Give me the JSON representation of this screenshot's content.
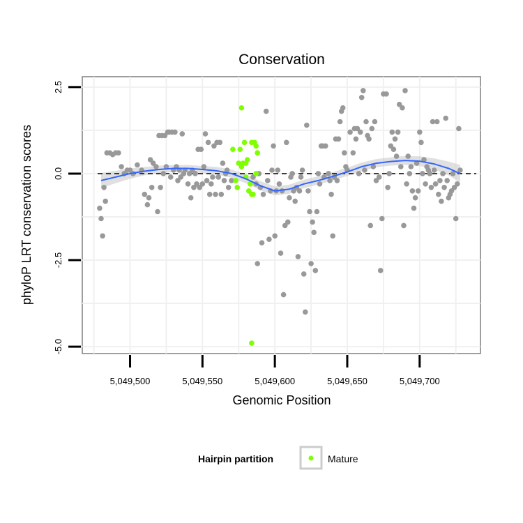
{
  "chart_data": {
    "type": "scatter",
    "title": "Conservation",
    "xlabel": "Genomic Position",
    "ylabel": "phyloP LRT conservation scores",
    "xlim": [
      5049467,
      5049742
    ],
    "ylim": [
      -5.2,
      2.8
    ],
    "x_ticks": [
      5049500,
      5049550,
      5049600,
      5049650,
      5049700
    ],
    "x_tick_labels": [
      "5,049,500",
      "5,049,550",
      "5,049,600",
      "5,049,650",
      "5,049,700"
    ],
    "y_ticks": [
      2.5,
      0.0,
      -2.5,
      -5.0
    ],
    "y_tick_labels": [
      "2.5",
      "0.0",
      "-2.5",
      "-5.0"
    ],
    "grid": true,
    "reference_line": {
      "y": 0,
      "style": "dashed"
    },
    "colors": {
      "other": "#999999",
      "mature": "#7fff00",
      "smooth": "#3366ff",
      "band": "#cccccc",
      "panel_border": "#7f7f7f",
      "grid": "#f0f0f0"
    },
    "legend": {
      "title": "Hairpin partition",
      "position": "bottom",
      "entries": [
        {
          "label": "Mature",
          "color": "#7fff00"
        }
      ]
    },
    "series": [
      {
        "group": "other",
        "points": [
          [
            5049479,
            -1.0
          ],
          [
            5049480,
            -1.3
          ],
          [
            5049481,
            -1.8
          ],
          [
            5049482,
            -0.4
          ],
          [
            5049483,
            -0.8
          ],
          [
            5049484,
            0.6
          ],
          [
            5049486,
            0.6
          ],
          [
            5049488,
            0.55
          ],
          [
            5049490,
            0.6
          ],
          [
            5049492,
            0.6
          ],
          [
            5049494,
            0.2
          ],
          [
            5049496,
            0.0
          ],
          [
            5049498,
            0.1
          ],
          [
            5049500,
            0.1
          ],
          [
            5049502,
            0.0
          ],
          [
            5049505,
            0.25
          ],
          [
            5049508,
            0.1
          ],
          [
            5049510,
            -0.6
          ],
          [
            5049512,
            -0.9
          ],
          [
            5049513,
            -0.7
          ],
          [
            5049514,
            0.4
          ],
          [
            5049515,
            -0.4
          ],
          [
            5049516,
            0.3
          ],
          [
            5049518,
            0.2
          ],
          [
            5049519,
            -1.1
          ],
          [
            5049520,
            1.1
          ],
          [
            5049521,
            -0.4
          ],
          [
            5049522,
            1.1
          ],
          [
            5049523,
            0.0
          ],
          [
            5049524,
            1.1
          ],
          [
            5049525,
            0.2
          ],
          [
            5049526,
            1.2
          ],
          [
            5049527,
            1.2
          ],
          [
            5049528,
            -0.1
          ],
          [
            5049529,
            1.2
          ],
          [
            5049530,
            0.1
          ],
          [
            5049531,
            1.2
          ],
          [
            5049532,
            0.2
          ],
          [
            5049533,
            -0.2
          ],
          [
            5049534,
            0.1
          ],
          [
            5049535,
            -0.1
          ],
          [
            5049536,
            1.15
          ],
          [
            5049537,
            0.0
          ],
          [
            5049538,
            0.1
          ],
          [
            5049540,
            -0.3
          ],
          [
            5049541,
            0.0
          ],
          [
            5049542,
            -0.7
          ],
          [
            5049543,
            0.1
          ],
          [
            5049544,
            -0.4
          ],
          [
            5049545,
            0.0
          ],
          [
            5049546,
            -0.3
          ],
          [
            5049547,
            0.7
          ],
          [
            5049548,
            -0.4
          ],
          [
            5049549,
            0.7
          ],
          [
            5049550,
            -0.3
          ],
          [
            5049551,
            0.2
          ],
          [
            5049552,
            1.15
          ],
          [
            5049553,
            -0.2
          ],
          [
            5049554,
            0.9
          ],
          [
            5049555,
            -0.6
          ],
          [
            5049556,
            -0.3
          ],
          [
            5049557,
            -0.1
          ],
          [
            5049558,
            0.8
          ],
          [
            5049559,
            -0.6
          ],
          [
            5049560,
            0.9
          ],
          [
            5049561,
            -0.1
          ],
          [
            5049562,
            0.9
          ],
          [
            5049563,
            -0.6
          ],
          [
            5049564,
            0.3
          ],
          [
            5049565,
            -0.2
          ],
          [
            5049566,
            0.0
          ],
          [
            5049567,
            0.1
          ],
          [
            5049568,
            -0.4
          ],
          [
            5049570,
            -0.2
          ],
          [
            5049585,
            -0.1
          ],
          [
            5049587,
            -0.3
          ],
          [
            5049588,
            -2.6
          ],
          [
            5049589,
            0.0
          ],
          [
            5049590,
            -0.4
          ],
          [
            5049591,
            -2.0
          ],
          [
            5049592,
            -0.6
          ],
          [
            5049594,
            1.8
          ],
          [
            5049595,
            -0.2
          ],
          [
            5049596,
            -1.9
          ],
          [
            5049597,
            -0.5
          ],
          [
            5049598,
            0.1
          ],
          [
            5049599,
            0.8
          ],
          [
            5049600,
            -1.8
          ],
          [
            5049601,
            -0.5
          ],
          [
            5049602,
            0.1
          ],
          [
            5049603,
            -0.3
          ],
          [
            5049604,
            -2.3
          ],
          [
            5049605,
            -0.5
          ],
          [
            5049606,
            -3.5
          ],
          [
            5049607,
            -1.5
          ],
          [
            5049608,
            0.9
          ],
          [
            5049609,
            -1.4
          ],
          [
            5049610,
            -0.7
          ],
          [
            5049611,
            -0.1
          ],
          [
            5049612,
            0.0
          ],
          [
            5049613,
            -0.5
          ],
          [
            5049614,
            -0.8
          ],
          [
            5049615,
            -0.4
          ],
          [
            5049616,
            -2.4
          ],
          [
            5049617,
            -0.5
          ],
          [
            5049618,
            -0.1
          ],
          [
            5049619,
            0.1
          ],
          [
            5049620,
            -2.9
          ],
          [
            5049621,
            -4.0
          ],
          [
            5049622,
            1.4
          ],
          [
            5049623,
            -0.5
          ],
          [
            5049624,
            -1.1
          ],
          [
            5049625,
            -2.6
          ],
          [
            5049626,
            -1.4
          ],
          [
            5049627,
            -1.7
          ],
          [
            5049628,
            -2.8
          ],
          [
            5049629,
            -1.1
          ],
          [
            5049630,
            0.0
          ],
          [
            5049631,
            -0.3
          ],
          [
            5049632,
            0.8
          ],
          [
            5049633,
            0.8
          ],
          [
            5049634,
            -0.1
          ],
          [
            5049635,
            0.8
          ],
          [
            5049637,
            0.0
          ],
          [
            5049638,
            -0.2
          ],
          [
            5049639,
            -0.6
          ],
          [
            5049640,
            -1.8
          ],
          [
            5049641,
            -0.1
          ],
          [
            5049642,
            1.0
          ],
          [
            5049643,
            -0.2
          ],
          [
            5049644,
            1.0
          ],
          [
            5049645,
            1.5
          ],
          [
            5049646,
            1.8
          ],
          [
            5049647,
            1.9
          ],
          [
            5049648,
            0.6
          ],
          [
            5049649,
            0.2
          ],
          [
            5049650,
            0.1
          ],
          [
            5049652,
            1.2
          ],
          [
            5049654,
            0.6
          ],
          [
            5049655,
            1.3
          ],
          [
            5049656,
            1.0
          ],
          [
            5049657,
            1.3
          ],
          [
            5049658,
            0.0
          ],
          [
            5049659,
            1.2
          ],
          [
            5049660,
            2.2
          ],
          [
            5049661,
            2.4
          ],
          [
            5049662,
            0.1
          ],
          [
            5049663,
            1.5
          ],
          [
            5049664,
            1.1
          ],
          [
            5049665,
            1.0
          ],
          [
            5049666,
            -1.5
          ],
          [
            5049667,
            1.3
          ],
          [
            5049668,
            0.2
          ],
          [
            5049669,
            1.5
          ],
          [
            5049670,
            -0.2
          ],
          [
            5049672,
            -0.1
          ],
          [
            5049673,
            -2.8
          ],
          [
            5049674,
            -1.3
          ],
          [
            5049675,
            2.3
          ],
          [
            5049677,
            2.3
          ],
          [
            5049678,
            -0.4
          ],
          [
            5049679,
            0.0
          ],
          [
            5049680,
            0.8
          ],
          [
            5049681,
            1.2
          ],
          [
            5049682,
            0.7
          ],
          [
            5049683,
            1.0
          ],
          [
            5049684,
            0.5
          ],
          [
            5049685,
            1.2
          ],
          [
            5049686,
            2.0
          ],
          [
            5049687,
            0.2
          ],
          [
            5049688,
            1.9
          ],
          [
            5049689,
            -1.5
          ],
          [
            5049690,
            2.4
          ],
          [
            5049691,
            -0.3
          ],
          [
            5049692,
            0.5
          ],
          [
            5049693,
            0.0
          ],
          [
            5049694,
            0.2
          ],
          [
            5049695,
            -0.5
          ],
          [
            5049696,
            -1.0
          ],
          [
            5049697,
            -0.7
          ],
          [
            5049698,
            0.3
          ],
          [
            5049699,
            -0.5
          ],
          [
            5049700,
            1.2
          ],
          [
            5049701,
            0.9
          ],
          [
            5049702,
            0.0
          ],
          [
            5049703,
            0.4
          ],
          [
            5049704,
            -0.3
          ],
          [
            5049705,
            0.2
          ],
          [
            5049706,
            0.1
          ],
          [
            5049707,
            0.0
          ],
          [
            5049708,
            -0.4
          ],
          [
            5049709,
            1.5
          ],
          [
            5049710,
            0.1
          ],
          [
            5049711,
            -0.3
          ],
          [
            5049712,
            1.5
          ],
          [
            5049713,
            -0.6
          ],
          [
            5049714,
            -0.2
          ],
          [
            5049715,
            -0.8
          ],
          [
            5049716,
            0.0
          ],
          [
            5049717,
            -0.4
          ],
          [
            5049718,
            1.6
          ],
          [
            5049719,
            -0.2
          ],
          [
            5049720,
            -0.7
          ],
          [
            5049721,
            -0.6
          ],
          [
            5049722,
            -0.5
          ],
          [
            5049723,
            0.0
          ],
          [
            5049724,
            -0.4
          ],
          [
            5049725,
            -1.3
          ],
          [
            5049726,
            -0.3
          ],
          [
            5049727,
            1.3
          ],
          [
            5049728,
            0.1
          ]
        ]
      },
      {
        "group": "mature",
        "name": "Mature",
        "points": [
          [
            5049571,
            0.7
          ],
          [
            5049573,
            -0.2
          ],
          [
            5049574,
            -0.4
          ],
          [
            5049575,
            0.3
          ],
          [
            5049576,
            0.7
          ],
          [
            5049577,
            0.2
          ],
          [
            5049577,
            1.9
          ],
          [
            5049578,
            0.3
          ],
          [
            5049579,
            0.9
          ],
          [
            5049580,
            0.3
          ],
          [
            5049580,
            -0.1
          ],
          [
            5049581,
            0.4
          ],
          [
            5049582,
            -0.5
          ],
          [
            5049583,
            -0.3
          ],
          [
            5049584,
            0.9
          ],
          [
            5049584,
            -0.6
          ],
          [
            5049585,
            -0.6
          ],
          [
            5049586,
            0.9
          ],
          [
            5049587,
            0.8
          ],
          [
            5049588,
            0.6
          ],
          [
            5049588,
            0.6
          ],
          [
            5049584,
            -4.9
          ],
          [
            5049587,
            0.0
          ]
        ]
      }
    ],
    "smooth": {
      "x": [
        5049480,
        5049490,
        5049500,
        5049510,
        5049520,
        5049530,
        5049540,
        5049550,
        5049560,
        5049570,
        5049580,
        5049590,
        5049600,
        5049610,
        5049620,
        5049630,
        5049640,
        5049650,
        5049660,
        5049670,
        5049680,
        5049690,
        5049700,
        5049710,
        5049720,
        5049728
      ],
      "y": [
        -0.2,
        -0.1,
        0.0,
        0.07,
        0.12,
        0.15,
        0.15,
        0.12,
        0.08,
        0.0,
        -0.15,
        -0.35,
        -0.5,
        -0.45,
        -0.3,
        -0.2,
        -0.08,
        0.05,
        0.2,
        0.3,
        0.35,
        0.38,
        0.36,
        0.28,
        0.15,
        0.0
      ],
      "band": [
        0.22,
        0.18,
        0.15,
        0.12,
        0.11,
        0.1,
        0.1,
        0.1,
        0.11,
        0.12,
        0.13,
        0.13,
        0.13,
        0.13,
        0.12,
        0.12,
        0.12,
        0.12,
        0.12,
        0.12,
        0.12,
        0.13,
        0.14,
        0.16,
        0.2,
        0.25
      ]
    }
  }
}
